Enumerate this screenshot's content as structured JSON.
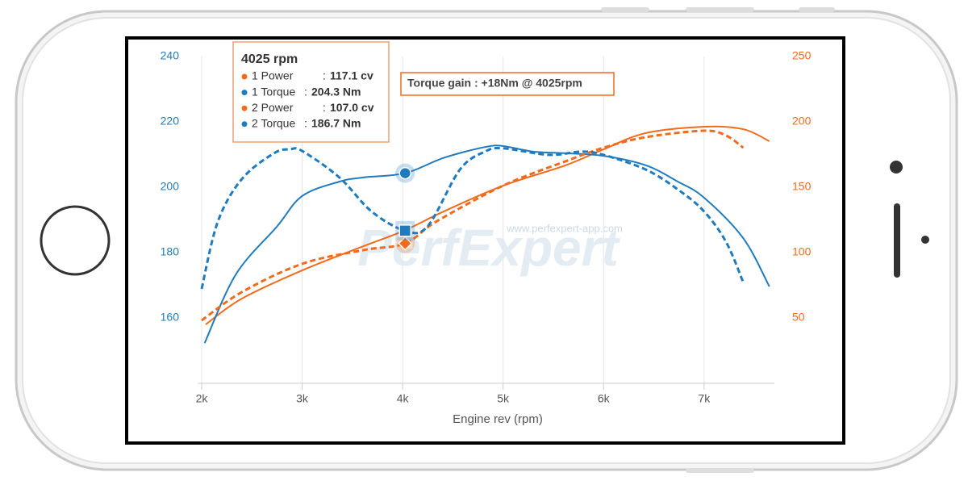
{
  "chart_data": {
    "type": "line",
    "x_label": "Engine rev (rpm)",
    "xlim": [
      1960,
      7700
    ],
    "xticks": [
      {
        "value": 2000,
        "label": "2k"
      },
      {
        "value": 3000,
        "label": "3k"
      },
      {
        "value": 4000,
        "label": "4k"
      },
      {
        "value": 5000,
        "label": "5k"
      },
      {
        "value": 6000,
        "label": "6k"
      },
      {
        "value": 7000,
        "label": "7k"
      }
    ],
    "ylim": [
      140,
      240
    ],
    "yticks": [
      160,
      180,
      200,
      220,
      240
    ],
    "y2lim": [
      0,
      250
    ],
    "y2ticks": [
      50,
      100,
      150,
      200,
      250
    ],
    "grid": "x",
    "series": [
      {
        "name": "1 Power",
        "color": "#f26b1d",
        "axis": "y2",
        "dashed": false,
        "x": [
          2040,
          2400,
          3000,
          3610,
          4025,
          4410,
          5000,
          5620,
          6000,
          6420,
          7000,
          7390,
          7650
        ],
        "values": [
          45,
          64.8,
          86.4,
          104.9,
          117.1,
          131.5,
          151.2,
          166.7,
          179,
          191.4,
          196.3,
          194.4,
          185.2
        ]
      },
      {
        "name": "1 Torque",
        "color": "#1f7bbf",
        "dashed": false,
        "x": [
          2030,
          2340,
          2750,
          3000,
          3370,
          3610,
          4025,
          4410,
          4820,
          5000,
          5300,
          5620,
          6000,
          6420,
          6740,
          7000,
          7390,
          7650
        ],
        "values": [
          152.3,
          173.3,
          188,
          197.3,
          201.7,
          203,
          204.3,
          209,
          212.3,
          212.6,
          210.9,
          210.4,
          209.6,
          206.7,
          201.7,
          196.8,
          184.4,
          169.6
        ]
      },
      {
        "name": "2 Power",
        "color": "#f26b1d",
        "axis": "y2",
        "dashed": true,
        "x": [
          2000,
          2400,
          3000,
          3610,
          4025,
          4330,
          5000,
          5620,
          6000,
          6420,
          7000,
          7220,
          7390
        ],
        "values": [
          48.1,
          69.8,
          91.4,
          101.9,
          107.0,
          123.5,
          151.2,
          169.8,
          180.2,
          188.3,
          193.2,
          189.5,
          180.2
        ]
      },
      {
        "name": "2 Torque",
        "color": "#1f7bbf",
        "dashed": true,
        "x": [
          2000,
          2160,
          2400,
          2720,
          2880,
          3000,
          3370,
          3690,
          4025,
          4250,
          4570,
          4820,
          5000,
          5460,
          5780,
          6000,
          6420,
          6740,
          7000,
          7220,
          7390
        ],
        "values": [
          168.9,
          189.4,
          202.5,
          210.4,
          211.6,
          211.1,
          203,
          192.6,
          186.7,
          188.1,
          205.4,
          210.9,
          211.9,
          209.9,
          210.9,
          209.9,
          205.4,
          199.3,
          192.6,
          183.2,
          170.9
        ]
      }
    ],
    "tooltip": {
      "title": "4025 rpm",
      "x": 4025,
      "separator": ":",
      "items": [
        {
          "name": "1 Power",
          "value": 117.1,
          "value_label": "117.1 cv"
        },
        {
          "name": "1 Torque",
          "value": 204.3,
          "value_label": "204.3 Nm"
        },
        {
          "name": "2 Power",
          "value": 107.0,
          "value_label": "107.0 cv"
        },
        {
          "name": "2 Torque",
          "value": 186.7,
          "value_label": "186.7 Nm"
        }
      ]
    },
    "annotation": "Torque gain : +18Nm @ 4025rpm",
    "watermark": "PerfExpert",
    "watermark_url": "www.perfexpert-app.com"
  }
}
